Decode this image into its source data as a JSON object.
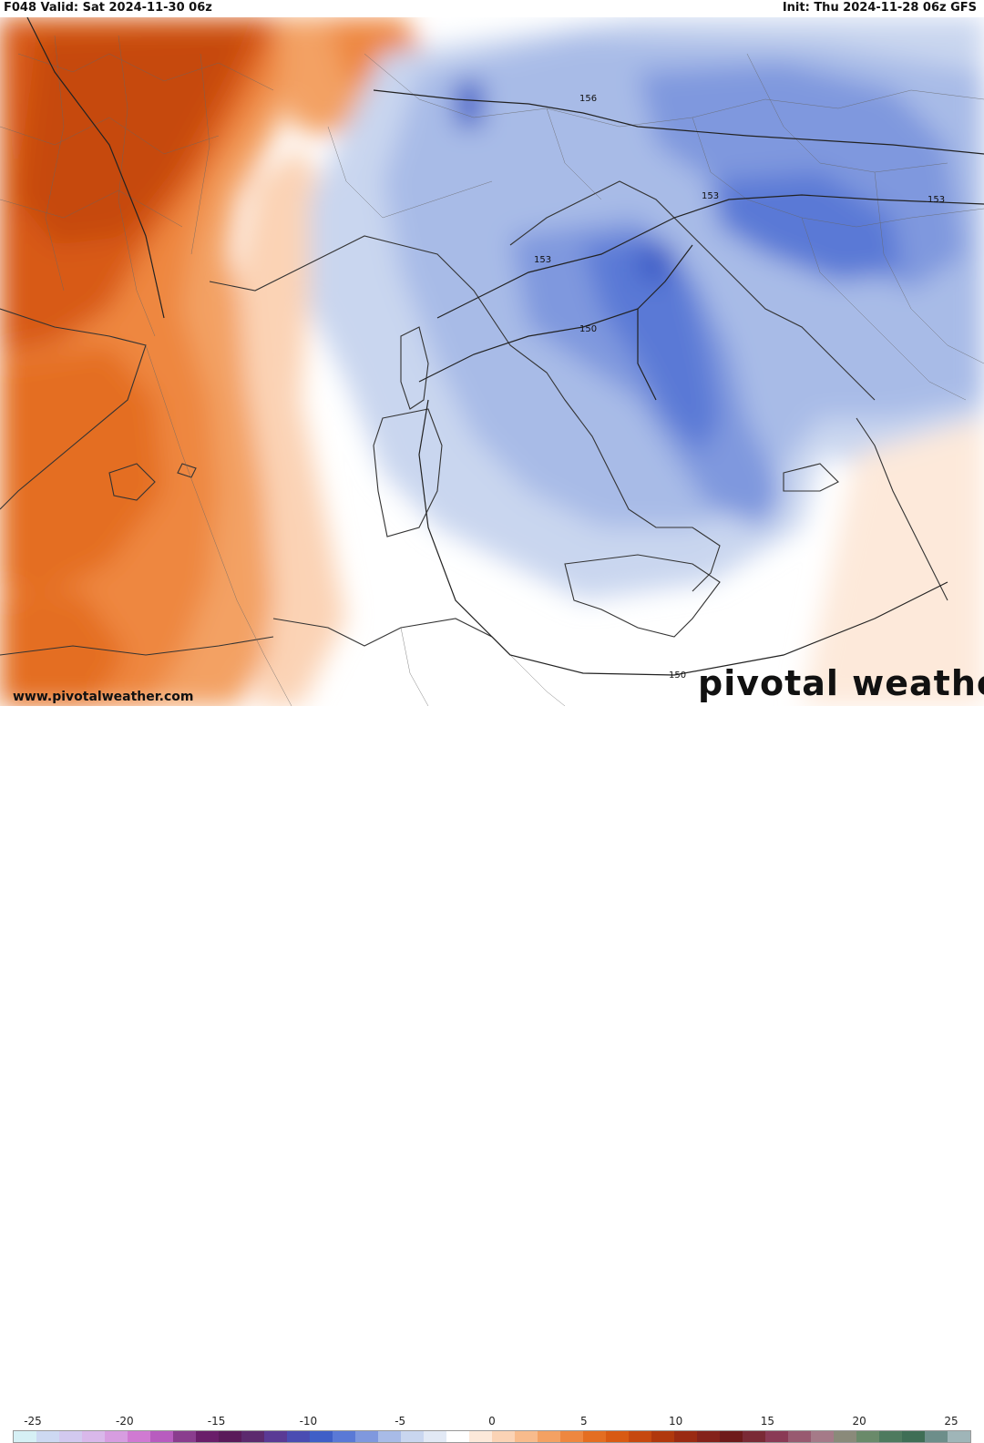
{
  "header": {
    "valid_text": "F048 Valid: Sat 2024-11-30 06z",
    "init_text": "Init: Thu 2024-11-28 06z GFS"
  },
  "branding": {
    "watermark": "pivotal weather",
    "site": "www.pivotalweather.com"
  },
  "map": {
    "contour_labels": [
      "156",
      "153",
      "153",
      "153",
      "150",
      "150"
    ]
  },
  "legend": {
    "ticks": [
      "-25",
      "-20",
      "-15",
      "-10",
      "-5",
      "0",
      "5",
      "10",
      "15",
      "20",
      "25"
    ],
    "colors": [
      "#d6f0f5",
      "#cdd9f2",
      "#d2c9ef",
      "#d9b8ea",
      "#d79de0",
      "#d07ad2",
      "#b85cbf",
      "#8a3d8e",
      "#6a1e6a",
      "#5a1a5a",
      "#5c2a6e",
      "#5a3a95",
      "#4a4cb2",
      "#3f5fc7",
      "#5a79d6",
      "#7f98de",
      "#a8bbe7",
      "#c9d6ef",
      "#e2e9f5",
      "#ffffff",
      "#fde9da",
      "#fbd3b5",
      "#f8bb8c",
      "#f3a163",
      "#ee8740",
      "#e46e22",
      "#d85a13",
      "#c6480f",
      "#b0380d",
      "#9a2a12",
      "#84221a",
      "#6e1a1a",
      "#7a2a35",
      "#8a3a55",
      "#985a70",
      "#a57a88",
      "#8a8a7a",
      "#6a8a6a",
      "#4e7a5e",
      "#3f6e55",
      "#6d8e8a",
      "#9fb5b8"
    ]
  }
}
